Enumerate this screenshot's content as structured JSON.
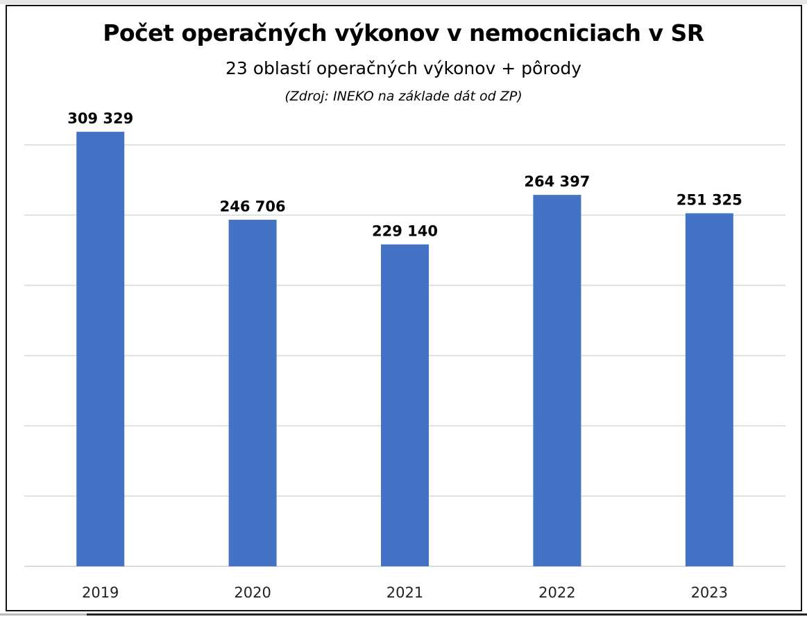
{
  "chart_data": {
    "type": "bar",
    "title": "Počet operačných výkonov v nemocniciach v SR",
    "subtitle": "23 oblastí operačných výkonov + pôrody",
    "source": "(Zdroj: INEKO na základe dát od ZP)",
    "categories": [
      "2019",
      "2020",
      "2021",
      "2022",
      "2023"
    ],
    "values": [
      309329,
      246706,
      229140,
      264397,
      251325
    ],
    "data_labels": [
      "309 329",
      "246 706",
      "229 140",
      "264 397",
      "251 325"
    ],
    "xlabel": "",
    "ylabel": "",
    "ylim": [
      0,
      300000
    ],
    "grid_step": 50000,
    "grid": true,
    "bar_color": "#4472C4",
    "grid_color": "#d9d9d9"
  }
}
